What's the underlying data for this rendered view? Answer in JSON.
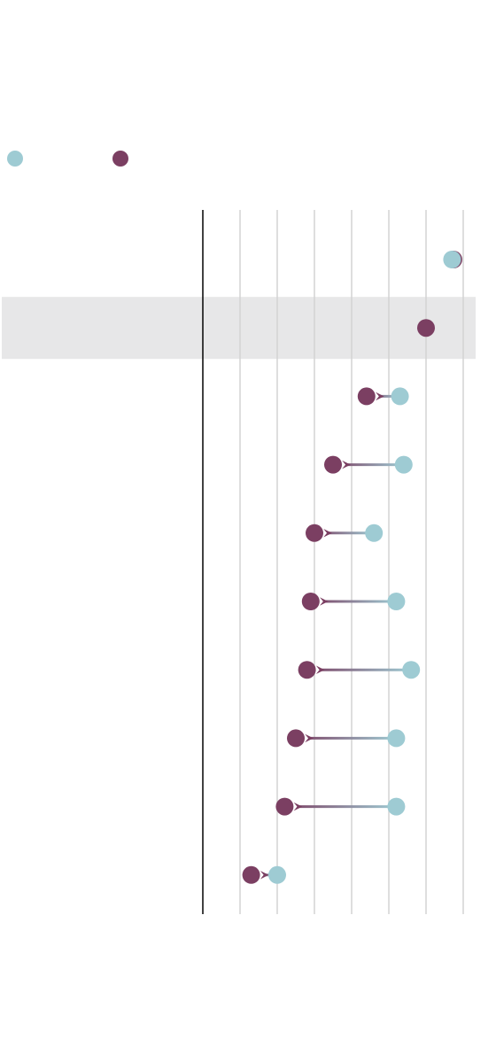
{
  "chart_data": {
    "type": "dumbbell",
    "title": "",
    "subtitle": "",
    "xlabel": "",
    "ylabel": "",
    "xlim": [
      0,
      7
    ],
    "grid": true,
    "legend_position": "top-left",
    "series": [
      {
        "name": "",
        "color": "#9ecbd3",
        "values": [
          6.7,
          null,
          5.3,
          5.4,
          4.6,
          5.2,
          5.6,
          5.2,
          5.2,
          2.0
        ]
      },
      {
        "name": "",
        "color": "#7b3f62",
        "values": [
          6.7,
          6.0,
          4.4,
          3.5,
          3.0,
          2.9,
          2.8,
          2.5,
          2.2,
          1.3
        ]
      }
    ],
    "categories": [
      "",
      "",
      "",
      "",
      "",
      "",
      "",
      "",
      "",
      ""
    ],
    "highlight_row_index": 1
  },
  "colors": {
    "before": "#9ecbd3",
    "after": "#7b3f62",
    "highlight_band": "#e7e7e8",
    "grid": "#d3d3d3",
    "axis": "#111111"
  }
}
